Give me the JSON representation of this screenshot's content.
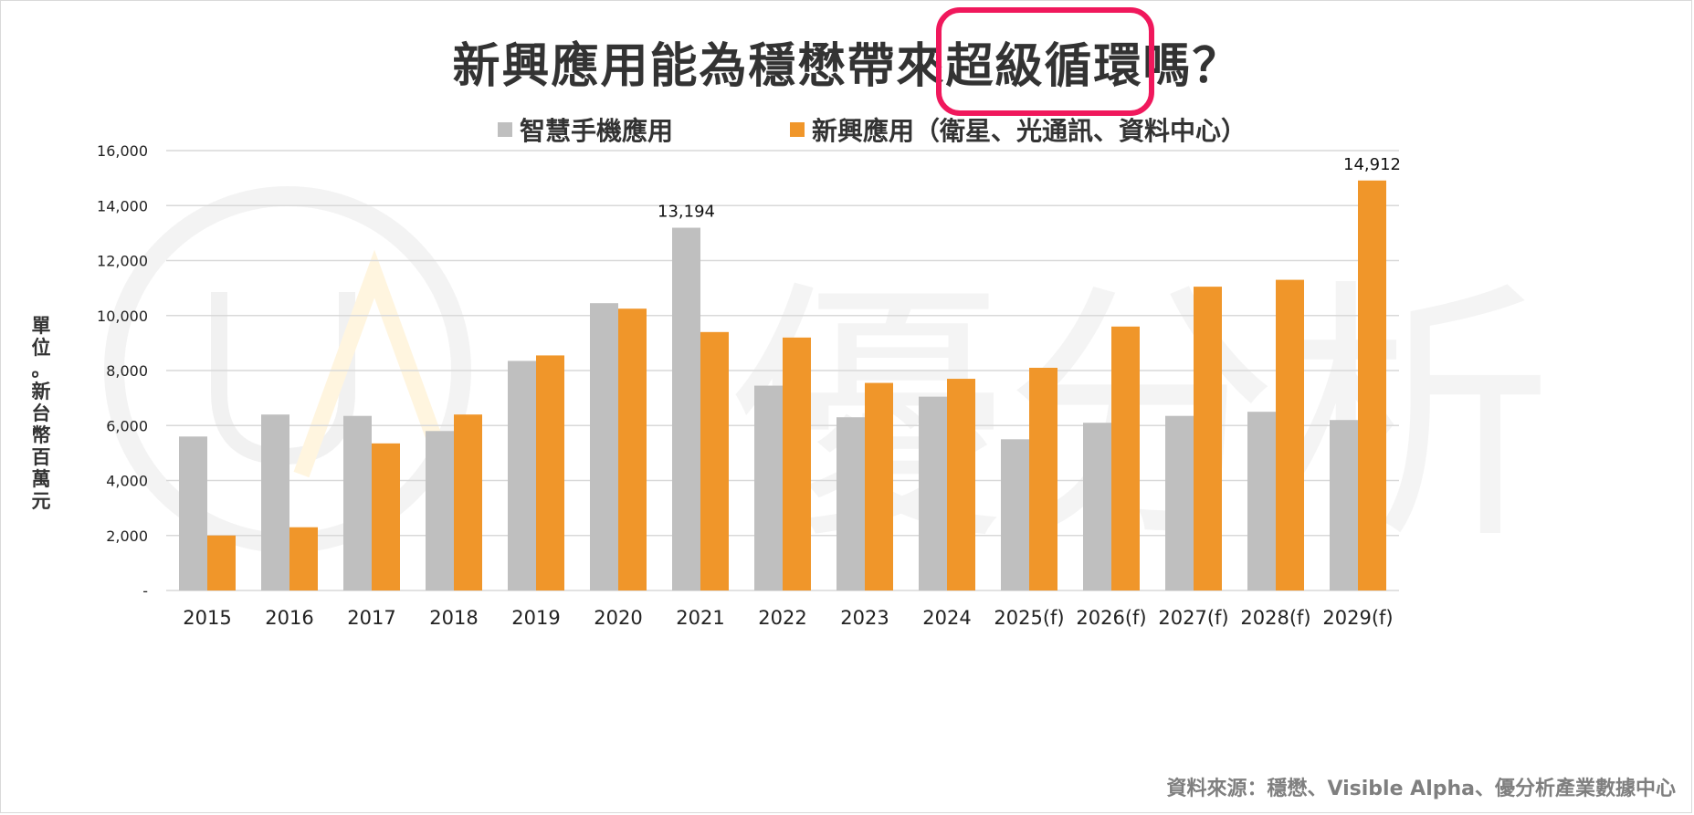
{
  "title": {
    "prefix": "新興應用能為穩懋帶來",
    "highlight": "超級循環",
    "suffix": "嗎？"
  },
  "legend": [
    {
      "label": "智慧手機應用",
      "color": "#bfbfbf"
    },
    {
      "label": "新興應用（衛星、光通訊、資料中心）",
      "color": "#f0962a"
    }
  ],
  "ylabel_chars": [
    "單",
    "位",
    "。",
    "新",
    "台",
    "幣",
    "百",
    "萬",
    "元"
  ],
  "source": "資料來源：穩懋、Visible Alpha、優分析產業數據中心",
  "watermark": "優分析",
  "colors": {
    "highlight_box": "#f0185c",
    "gray": "#bfbfbf",
    "orange": "#f0962a",
    "grid": "#d9d9d9"
  },
  "chart_data": {
    "type": "bar",
    "title": "新興應用能為穩懋帶來超級循環嗎？",
    "xlabel": "",
    "ylabel": "單位。新台幣百萬元",
    "ylim": [
      0,
      16000
    ],
    "yticks": [
      0,
      2000,
      4000,
      6000,
      8000,
      10000,
      12000,
      14000,
      16000
    ],
    "ytick_labels": [
      "-",
      "2,000",
      "4,000",
      "6,000",
      "8,000",
      "10,000",
      "12,000",
      "14,000",
      "16,000"
    ],
    "grid": true,
    "legend_position": "top",
    "categories": [
      "2015",
      "2016",
      "2017",
      "2018",
      "2019",
      "2020",
      "2021",
      "2022",
      "2023",
      "2024",
      "2025(f)",
      "2026(f)",
      "2027(f)",
      "2028(f)",
      "2029(f)"
    ],
    "series": [
      {
        "name": "智慧手機應用",
        "color": "#bfbfbf",
        "values": [
          5600,
          6400,
          6350,
          5800,
          8350,
          10450,
          13194,
          7450,
          6300,
          7050,
          5500,
          6100,
          6350,
          6500,
          6200
        ]
      },
      {
        "name": "新興應用（衛星、光通訊、資料中心）",
        "color": "#f0962a",
        "values": [
          2000,
          2300,
          5350,
          6400,
          8550,
          10250,
          9400,
          9200,
          7550,
          7700,
          8100,
          9600,
          11050,
          11300,
          14912
        ]
      }
    ],
    "annotations": [
      {
        "series": 0,
        "category": "2021",
        "text": "13,194"
      },
      {
        "series": 1,
        "category": "2029(f)",
        "text": "14,912"
      }
    ]
  }
}
